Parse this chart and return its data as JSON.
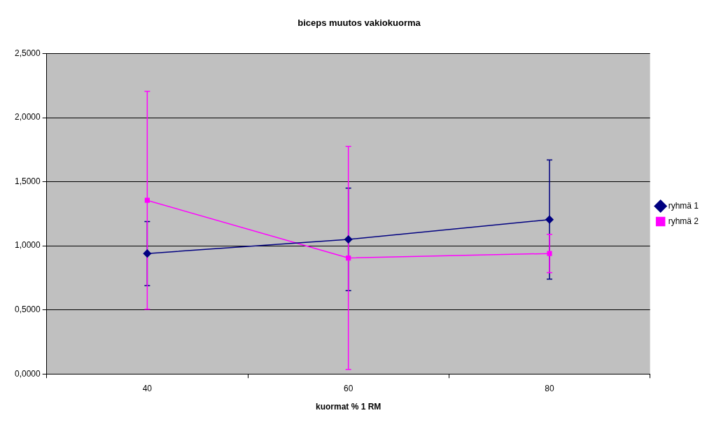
{
  "chart_data": {
    "type": "line",
    "title": "biceps muutos vakiokuorma",
    "xlabel": "kuormat % 1 RM",
    "categories": [
      "40",
      "60",
      "80"
    ],
    "series": [
      {
        "name": "ryhmä 1",
        "color": "#000080",
        "marker": "diamond",
        "values": [
          0.94,
          1.05,
          1.205
        ],
        "errors": [
          0.25,
          0.4,
          0.465
        ]
      },
      {
        "name": "ryhmä 2",
        "color": "#ff00ff",
        "marker": "square",
        "values": [
          1.355,
          0.905,
          0.94
        ],
        "errors": [
          0.85,
          0.87,
          0.15
        ]
      }
    ],
    "ylim": [
      0,
      2.5
    ],
    "yticks": [
      {
        "value": 0,
        "label": "0,0000"
      },
      {
        "value": 0.5,
        "label": "0,5000"
      },
      {
        "value": 1,
        "label": "1,0000"
      },
      {
        "value": 1.5,
        "label": "1,5000"
      },
      {
        "value": 2,
        "label": "2,0000"
      },
      {
        "value": 2.5,
        "label": "2,5000"
      }
    ],
    "grid": "y",
    "legend": "right"
  }
}
